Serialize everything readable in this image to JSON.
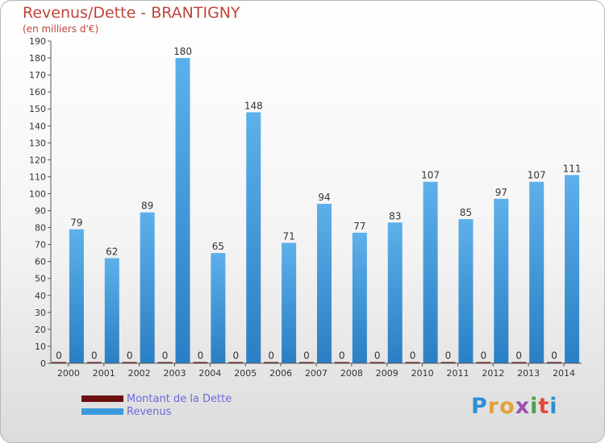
{
  "header": {
    "title": "Revenus/Dette - BRANTIGNY",
    "subtitle": "(en milliers d'€)"
  },
  "colors": {
    "revenus": "#3d99dd",
    "dette": "#6b0f0f",
    "title": "#c0453c",
    "legend_text": "#6a6adc"
  },
  "chart_data": {
    "type": "bar",
    "title": "Revenus/Dette - BRANTIGNY",
    "ylabel": "(en milliers d'€)",
    "categories": [
      "2000",
      "2001",
      "2002",
      "2003",
      "2004",
      "2005",
      "2006",
      "2007",
      "2008",
      "2009",
      "2010",
      "2011",
      "2012",
      "2013",
      "2014"
    ],
    "series": [
      {
        "name": "Montant de la Dette",
        "values": [
          0,
          0,
          0,
          0,
          0,
          0,
          0,
          0,
          0,
          0,
          0,
          0,
          0,
          0,
          0
        ]
      },
      {
        "name": "Revenus",
        "values": [
          79,
          62,
          89,
          180,
          65,
          148,
          71,
          94,
          77,
          83,
          107,
          85,
          97,
          107,
          111
        ]
      }
    ],
    "ylim": [
      0,
      190
    ],
    "yticks": [
      0,
      10,
      20,
      30,
      40,
      50,
      60,
      70,
      80,
      90,
      100,
      110,
      120,
      130,
      140,
      150,
      160,
      170,
      180,
      190
    ],
    "grid": false,
    "legend": "bottom-left"
  },
  "legend": {
    "items": [
      {
        "label": "Montant de la Dette",
        "color": "#6b0f0f"
      },
      {
        "label": "Revenus",
        "color": "#3d99dd"
      }
    ]
  },
  "logo": {
    "text": "Proxiti"
  }
}
